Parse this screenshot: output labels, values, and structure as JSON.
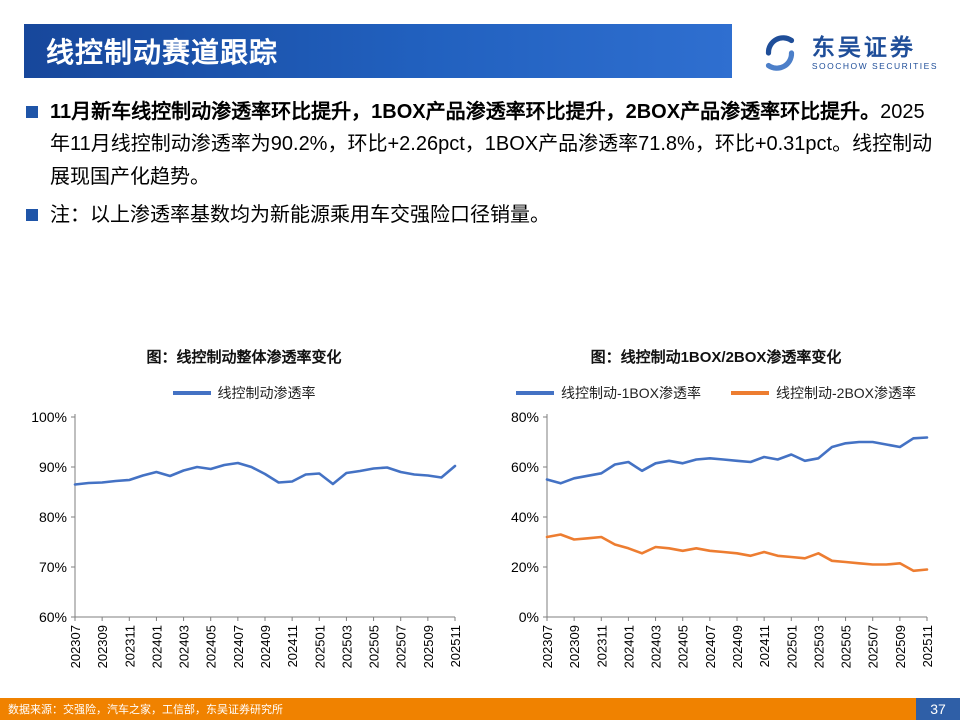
{
  "header": {
    "title": "线控制动赛道跟踪"
  },
  "logo": {
    "name_cn": "东吴证券",
    "name_en": "SOOCHOW SECURITIES"
  },
  "bullets": [
    {
      "lead": "11月新车线控制动渗透率环比提升，1BOX产品渗透率环比提升，2BOX产品渗透率环比提升。",
      "text": "2025年11月线控制动渗透率为90.2%，环比+2.26pct，1BOX产品渗透率71.8%，环比+0.31pct。线控制动展现国产化趋势。"
    },
    {
      "lead": "",
      "text": "注：以上渗透率基数均为新能源乘用车交强险口径销量。"
    }
  ],
  "chart_data": [
    {
      "type": "line",
      "title": "图：线控制动整体渗透率变化",
      "legend_position": "top",
      "grid": false,
      "xlabel": "",
      "ylabel": "",
      "ylim": [
        60,
        100
      ],
      "ytick_labels": [
        "60%",
        "70%",
        "80%",
        "90%",
        "100%"
      ],
      "x": [
        "202307",
        "202308",
        "202309",
        "202310",
        "202311",
        "202312",
        "202401",
        "202402",
        "202403",
        "202404",
        "202405",
        "202406",
        "202407",
        "202408",
        "202409",
        "202410",
        "202411",
        "202412",
        "202501",
        "202502",
        "202503",
        "202504",
        "202505",
        "202506",
        "202507",
        "202508",
        "202509",
        "202510",
        "202511"
      ],
      "x_tick_labels": [
        "202307",
        "202309",
        "202311",
        "202401",
        "202403",
        "202405",
        "202407",
        "202409",
        "202411",
        "202501",
        "202503",
        "202505",
        "202507",
        "202509",
        "202511"
      ],
      "series": [
        {
          "name": "线控制动渗透率",
          "color": "#4472C4",
          "values": [
            86.5,
            86.8,
            86.9,
            87.2,
            87.4,
            88.3,
            89.0,
            88.2,
            89.3,
            90.0,
            89.6,
            90.4,
            90.8,
            90.0,
            88.6,
            86.9,
            87.1,
            88.5,
            88.7,
            86.6,
            88.8,
            89.2,
            89.7,
            89.9,
            89.0,
            88.5,
            88.3,
            87.9,
            90.2
          ]
        }
      ]
    },
    {
      "type": "line",
      "title": "图：线控制动1BOX/2BOX渗透率变化",
      "legend_position": "top",
      "grid": false,
      "xlabel": "",
      "ylabel": "",
      "ylim": [
        0,
        80
      ],
      "ytick_labels": [
        "0%",
        "20%",
        "40%",
        "60%",
        "80%"
      ],
      "x": [
        "202307",
        "202308",
        "202309",
        "202310",
        "202311",
        "202312",
        "202401",
        "202402",
        "202403",
        "202404",
        "202405",
        "202406",
        "202407",
        "202408",
        "202409",
        "202410",
        "202411",
        "202412",
        "202501",
        "202502",
        "202503",
        "202504",
        "202505",
        "202506",
        "202507",
        "202508",
        "202509",
        "202510",
        "202511"
      ],
      "x_tick_labels": [
        "202307",
        "202309",
        "202311",
        "202401",
        "202403",
        "202405",
        "202407",
        "202409",
        "202411",
        "202501",
        "202503",
        "202505",
        "202507",
        "202509",
        "202511"
      ],
      "series": [
        {
          "name": "线控制动-1BOX渗透率",
          "color": "#4472C4",
          "values": [
            55.0,
            53.5,
            55.5,
            56.5,
            57.5,
            61.0,
            62.0,
            58.5,
            61.5,
            62.5,
            61.5,
            63.0,
            63.5,
            63.0,
            62.5,
            62.0,
            64.0,
            63.0,
            65.0,
            62.5,
            63.5,
            68.0,
            69.5,
            70.0,
            70.0,
            69.0,
            68.0,
            71.5,
            71.8
          ]
        },
        {
          "name": "线控制动-2BOX渗透率",
          "color": "#ED7D31",
          "values": [
            32.0,
            33.0,
            31.0,
            31.5,
            32.0,
            29.0,
            27.5,
            25.5,
            28.0,
            27.5,
            26.5,
            27.5,
            26.5,
            26.0,
            25.5,
            24.5,
            26.0,
            24.5,
            24.0,
            23.5,
            25.5,
            22.5,
            22.0,
            21.5,
            21.0,
            21.0,
            21.5,
            18.5,
            19.0
          ]
        }
      ]
    }
  ],
  "footer": {
    "source": "数据来源：交强险，汽车之家，工信部，东吴证券研究所",
    "page": "37"
  },
  "colors": {
    "header_blue_start": "#17479B",
    "header_blue_end": "#2F6FD0",
    "bullet_blue": "#1F55A8",
    "series_blue": "#4472C4",
    "series_orange": "#ED7D31",
    "footer_orange": "#F08200",
    "page_box_blue": "#2F5FA7",
    "brand_blue": "#1F4E99"
  }
}
